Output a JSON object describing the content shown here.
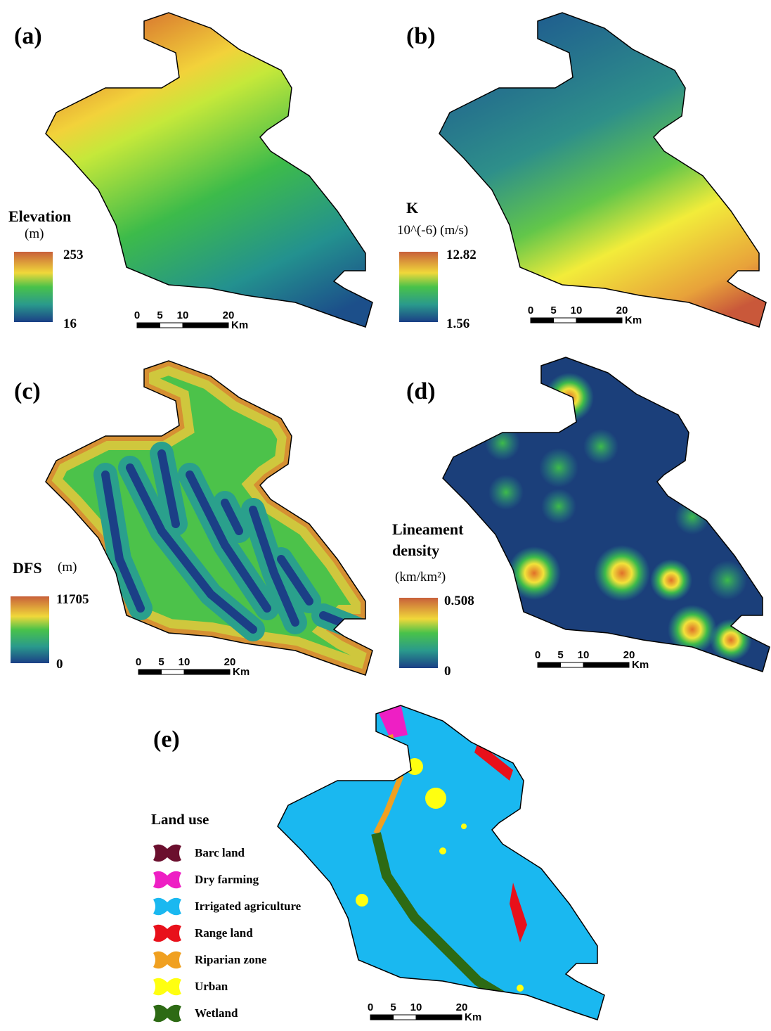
{
  "panels": [
    {
      "label": "(a)",
      "legend_title": "Elevation",
      "legend_unit": "(m)",
      "max": 253,
      "min": 16,
      "scale_bar": {
        "ticks": [
          0,
          5,
          10,
          20
        ],
        "unit": "Km"
      }
    },
    {
      "label": "(b)",
      "legend_title": "K",
      "legend_unit": "10^(-6) (m/s)",
      "max": 12.82,
      "min": 1.56,
      "scale_bar": {
        "ticks": [
          0,
          5,
          10,
          20
        ],
        "unit": "Km"
      }
    },
    {
      "label": "(c)",
      "legend_title": "DFS",
      "legend_unit": "(m)",
      "max": 11705,
      "min": 0,
      "scale_bar": {
        "ticks": [
          0,
          5,
          10,
          20
        ],
        "unit": "Km"
      }
    },
    {
      "label": "(d)",
      "legend_title": [
        "Lineament",
        "density"
      ],
      "legend_unit": "(km/km²)",
      "max": 0.508,
      "min": 0,
      "scale_bar": {
        "ticks": [
          0,
          5,
          10,
          20
        ],
        "unit": "Km"
      }
    }
  ],
  "land_use": {
    "label": "(e)",
    "title": "Land use",
    "items": [
      {
        "name": "Barc land",
        "color": "#6b0f2e"
      },
      {
        "name": "Dry farming",
        "color": "#ee1fc4"
      },
      {
        "name": "Irrigated agriculture",
        "color": "#1ab8f0"
      },
      {
        "name": "Range land",
        "color": "#e8101a"
      },
      {
        "name": "Riparian zone",
        "color": "#f0a020"
      },
      {
        "name": "Urban",
        "color": "#ffff10"
      },
      {
        "name": "Wetland",
        "color": "#2d6a14"
      }
    ],
    "scale_bar": {
      "ticks": [
        0,
        5,
        10,
        20
      ],
      "unit": "Km"
    }
  }
}
